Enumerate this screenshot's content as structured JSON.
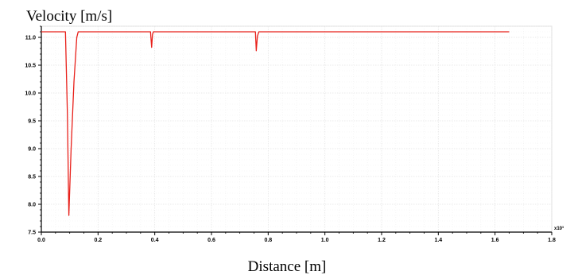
{
  "chart_data": {
    "type": "line",
    "ylabel": "Velocity [m/s]",
    "xlabel": "Distance [m]",
    "x_multiplier": "x10³",
    "xlim": [
      0.0,
      1.8
    ],
    "ylim": [
      7.5,
      11.2
    ],
    "xticks": [
      "0.0",
      "0.2",
      "0.4",
      "0.6",
      "0.8",
      "1.0",
      "1.2",
      "1.4",
      "1.6",
      "1.8"
    ],
    "yticks": [
      "7.5",
      "8.0",
      "8.5",
      "9.0",
      "9.5",
      "10.0",
      "10.5",
      "11.0"
    ],
    "grid": true,
    "series": [
      {
        "color": "#e8201a",
        "x": [
          0.0,
          0.085,
          0.092,
          0.097,
          0.105,
          0.115,
          0.125,
          0.13,
          0.385,
          0.389,
          0.392,
          0.395,
          0.755,
          0.758,
          0.762,
          0.767,
          1.65
        ],
        "y": [
          11.1,
          11.1,
          9.6,
          7.8,
          9.0,
          10.2,
          11.0,
          11.1,
          11.1,
          10.82,
          11.05,
          11.1,
          11.1,
          10.76,
          11.02,
          11.1,
          11.1
        ]
      }
    ]
  }
}
